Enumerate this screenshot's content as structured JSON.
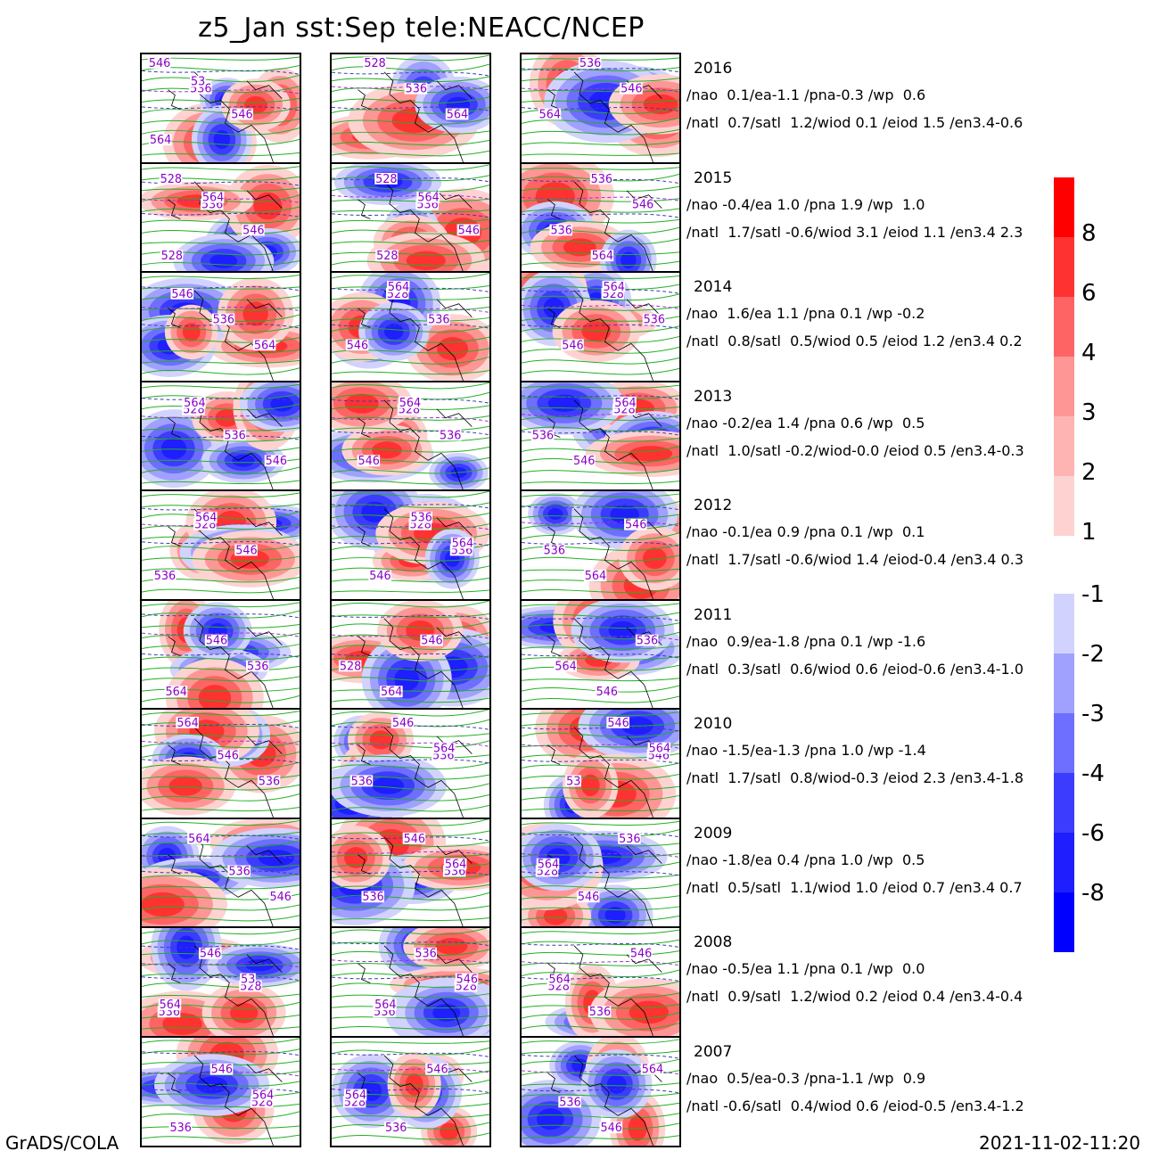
{
  "title": "z5_Jan  sst:Sep  tele:NEACC/NCEP",
  "footer": {
    "left": "GrADS/COLA",
    "right": "2021-11-02-11:20"
  },
  "rows": [
    {
      "year": "2016",
      "line1": "/nao  0.1/ea-1.1 /pna-0.3 /wp  0.6",
      "line2": "/natl  0.7/satl  1.2/wiod 0.1 /eiod 1.5 /en3.4-0.6",
      "panels": [
        {
          "labels": [
            "546",
            "536",
            "546",
            "564",
            "53"
          ]
        },
        {
          "labels": [
            "528",
            "536",
            "564"
          ]
        },
        {
          "labels": [
            "536",
            "546",
            "564"
          ]
        }
      ]
    },
    {
      "year": "2015",
      "line1": "/nao -0.4/ea 1.0 /pna 1.9 /wp  1.0",
      "line2": "/natl  1.7/satl -0.6/wiod 3.1 /eiod 1.1 /en3.4 2.3",
      "panels": [
        {
          "labels": [
            "528",
            "536",
            "546",
            "528",
            "564"
          ]
        },
        {
          "labels": [
            "528",
            "536",
            "546",
            "528",
            "564"
          ]
        },
        {
          "labels": [
            "536",
            "546",
            "536",
            "564"
          ]
        }
      ]
    },
    {
      "year": "2014",
      "line1": "/nao  1.6/ea 1.1 /pna 0.1 /wp -0.2",
      "line2": "/natl  0.8/satl  0.5/wiod 0.5 /eiod 1.2 /en3.4 0.2",
      "panels": [
        {
          "labels": [
            "546",
            "536",
            "564"
          ]
        },
        {
          "labels": [
            "528",
            "536",
            "546",
            "564"
          ]
        },
        {
          "labels": [
            "528",
            "536",
            "546",
            "564"
          ]
        }
      ]
    },
    {
      "year": "2013",
      "line1": "/nao -0.2/ea 1.4 /pna 0.6 /wp  0.5",
      "line2": "/natl  1.0/satl -0.2/wiod-0.0 /eiod 0.5 /en3.4-0.3",
      "panels": [
        {
          "labels": [
            "528",
            "536",
            "546",
            "564"
          ]
        },
        {
          "labels": [
            "528",
            "536",
            "546",
            "564"
          ]
        },
        {
          "labels": [
            "528",
            "536",
            "546",
            "564"
          ]
        }
      ]
    },
    {
      "year": "2012",
      "line1": "/nao -0.1/ea 0.9 /pna 0.1 /wp  0.1",
      "line2": "/natl  1.7/satl -0.6/wiod 1.4 /eiod-0.4 /en3.4 0.3",
      "panels": [
        {
          "labels": [
            "528",
            "546",
            "536",
            "564"
          ]
        },
        {
          "labels": [
            "528",
            "536",
            "546",
            "536",
            "564"
          ]
        },
        {
          "labels": [
            "546",
            "536",
            "564"
          ]
        }
      ]
    },
    {
      "year": "2011",
      "line1": "/nao  0.9/ea-1.8 /pna 0.1 /wp -1.6",
      "line2": "/natl  0.3/satl  0.6/wiod 0.6 /eiod-0.6 /en3.4-1.0",
      "panels": [
        {
          "labels": [
            "546",
            "536",
            "564"
          ]
        },
        {
          "labels": [
            "546",
            "528",
            "564"
          ]
        },
        {
          "labels": [
            "536",
            "564",
            "546"
          ]
        }
      ]
    },
    {
      "year": "2010",
      "line1": "/nao -1.5/ea-1.3 /pna 1.0 /wp -1.4",
      "line2": "/natl  1.7/satl  0.8/wiod-0.3 /eiod 2.3 /en3.4-1.8",
      "panels": [
        {
          "labels": [
            "546",
            "536",
            "564"
          ]
        },
        {
          "labels": [
            "536",
            "536",
            "546",
            "564"
          ]
        },
        {
          "labels": [
            "546",
            "53",
            "546",
            "564"
          ]
        }
      ]
    },
    {
      "year": "2009",
      "line1": "/nao -1.8/ea 0.4 /pna 1.0 /wp  0.5",
      "line2": "/natl  0.5/satl  1.1/wiod 1.0 /eiod 0.7 /en3.4 0.7",
      "panels": [
        {
          "labels": [
            "536",
            "546",
            "564"
          ]
        },
        {
          "labels": [
            "536",
            "536",
            "546",
            "564"
          ]
        },
        {
          "labels": [
            "528",
            "546",
            "536",
            "564"
          ]
        }
      ]
    },
    {
      "year": "2008",
      "line1": "/nao -0.5/ea 1.1 /pna 0.1 /wp  0.0",
      "line2": "/natl  0.9/satl  1.2/wiod 0.2 /eiod 0.4 /en3.4-0.4",
      "panels": [
        {
          "labels": [
            "528",
            "536",
            "546",
            "53",
            "564"
          ]
        },
        {
          "labels": [
            "528",
            "536",
            "536",
            "546",
            "564"
          ]
        },
        {
          "labels": [
            "528",
            "536",
            "546",
            "564"
          ]
        }
      ]
    },
    {
      "year": "2007",
      "line1": "/nao  0.5/ea-0.3 /pna-1.1 /wp  0.9",
      "line2": "/natl -0.6/satl  0.4/wiod 0.6 /eiod-0.5 /en3.4-1.2",
      "panels": [
        {
          "labels": [
            "528",
            "536",
            "546",
            "564"
          ]
        },
        {
          "labels": [
            "528",
            "536",
            "546",
            "564"
          ]
        },
        {
          "labels": [
            "536",
            "546",
            "564"
          ]
        }
      ]
    }
  ],
  "colorbar": {
    "positive": [
      {
        "label": "8",
        "color": "#ff0000"
      },
      {
        "label": "6",
        "color": "#ff3232"
      },
      {
        "label": "4",
        "color": "#ff6464"
      },
      {
        "label": "3",
        "color": "#ff9696"
      },
      {
        "label": "2",
        "color": "#ffb4b4"
      },
      {
        "label": "1",
        "color": "#ffd2d2"
      }
    ],
    "negative": [
      {
        "label": "-1",
        "color": "#d2d2ff"
      },
      {
        "label": "-2",
        "color": "#a0a0ff"
      },
      {
        "label": "-3",
        "color": "#6e6eff"
      },
      {
        "label": "-4",
        "color": "#3c3cff"
      },
      {
        "label": "-6",
        "color": "#1e1eff"
      },
      {
        "label": "-8",
        "color": "#0000ff"
      }
    ]
  }
}
